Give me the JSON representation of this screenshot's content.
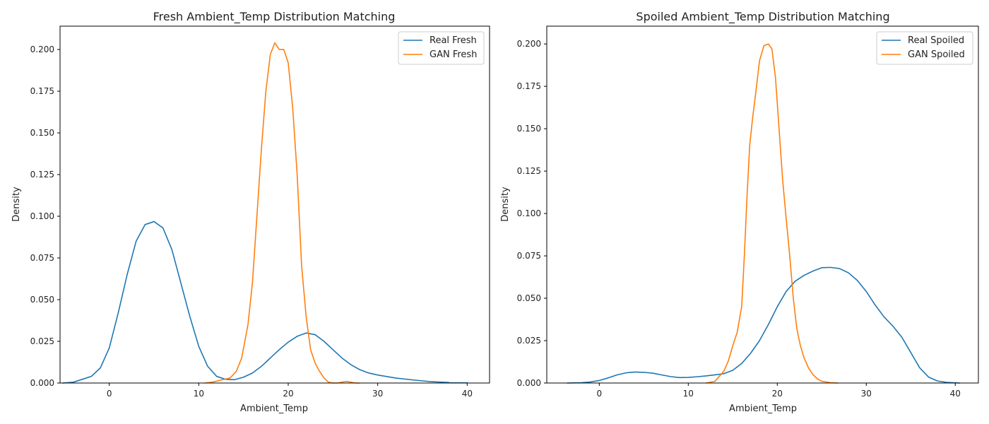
{
  "chart_data": [
    {
      "type": "line",
      "title": "Fresh Ambient_Temp Distribution Matching",
      "xlabel": "Ambient_Temp",
      "ylabel": "Density",
      "xlim": [
        -5.5,
        42.5
      ],
      "ylim": [
        0,
        0.214
      ],
      "xticks": [
        0,
        10,
        20,
        30,
        40
      ],
      "yticks": [
        0.0,
        0.025,
        0.05,
        0.075,
        0.1,
        0.125,
        0.15,
        0.175,
        0.2
      ],
      "ytick_labels": [
        "0.000",
        "0.025",
        "0.050",
        "0.075",
        "0.100",
        "0.125",
        "0.150",
        "0.175",
        "0.200"
      ],
      "grid": false,
      "legend": "top-right",
      "series": [
        {
          "name": "Real Fresh",
          "color": "#1f77b4",
          "points": [
            [
              -5.2,
              0.0
            ],
            [
              -4,
              0.0005
            ],
            [
              -2,
              0.004
            ],
            [
              -1,
              0.009
            ],
            [
              0,
              0.021
            ],
            [
              1,
              0.042
            ],
            [
              2,
              0.065
            ],
            [
              3,
              0.085
            ],
            [
              4,
              0.095
            ],
            [
              5,
              0.0968
            ],
            [
              6,
              0.093
            ],
            [
              7,
              0.08
            ],
            [
              8,
              0.06
            ],
            [
              9,
              0.04
            ],
            [
              10,
              0.022
            ],
            [
              11,
              0.01
            ],
            [
              12,
              0.004
            ],
            [
              13,
              0.0022
            ],
            [
              14,
              0.002
            ],
            [
              15,
              0.0035
            ],
            [
              16,
              0.006
            ],
            [
              17,
              0.01
            ],
            [
              18,
              0.015
            ],
            [
              19,
              0.02
            ],
            [
              20,
              0.0245
            ],
            [
              21,
              0.028
            ],
            [
              22,
              0.03
            ],
            [
              23,
              0.029
            ],
            [
              24,
              0.025
            ],
            [
              25,
              0.02
            ],
            [
              26,
              0.015
            ],
            [
              27,
              0.011
            ],
            [
              28,
              0.008
            ],
            [
              29,
              0.006
            ],
            [
              30,
              0.0048
            ],
            [
              32,
              0.003
            ],
            [
              34,
              0.0018
            ],
            [
              36,
              0.0008
            ],
            [
              38,
              0.0003
            ],
            [
              40,
              0.0001
            ]
          ]
        },
        {
          "name": "GAN Fresh",
          "color": "#ff7f0e",
          "points": [
            [
              10.7,
              0.0
            ],
            [
              11.5,
              0.0005
            ],
            [
              12.5,
              0.0018
            ],
            [
              13.5,
              0.003
            ],
            [
              14.2,
              0.007
            ],
            [
              14.8,
              0.015
            ],
            [
              15.5,
              0.035
            ],
            [
              16,
              0.06
            ],
            [
              16.5,
              0.1
            ],
            [
              17,
              0.14
            ],
            [
              17.5,
              0.175
            ],
            [
              18,
              0.197
            ],
            [
              18.5,
              0.204
            ],
            [
              19,
              0.2
            ],
            [
              19.5,
              0.2
            ],
            [
              20,
              0.192
            ],
            [
              20.5,
              0.165
            ],
            [
              21,
              0.125
            ],
            [
              21.5,
              0.07
            ],
            [
              22,
              0.04
            ],
            [
              22.5,
              0.02
            ],
            [
              23,
              0.012
            ],
            [
              23.5,
              0.007
            ],
            [
              24,
              0.003
            ],
            [
              24.5,
              0.0005
            ],
            [
              25,
              0.0
            ],
            [
              25.5,
              0.0
            ],
            [
              26.5,
              0.001
            ],
            [
              27.5,
              0.0
            ],
            [
              28,
              0.0
            ]
          ]
        }
      ]
    },
    {
      "type": "line",
      "title": "Spoiled Ambient_Temp Distribution Matching",
      "xlabel": "Ambient_Temp",
      "ylabel": "Density",
      "xlim": [
        -5.9,
        42.6
      ],
      "ylim": [
        0,
        0.2105
      ],
      "xticks": [
        0,
        10,
        20,
        30,
        40
      ],
      "yticks": [
        0.0,
        0.025,
        0.05,
        0.075,
        0.1,
        0.125,
        0.15,
        0.175,
        0.2
      ],
      "ytick_labels": [
        "0.000",
        "0.025",
        "0.050",
        "0.075",
        "0.100",
        "0.125",
        "0.150",
        "0.175",
        "0.200"
      ],
      "grid": false,
      "legend": "top-right",
      "series": [
        {
          "name": "Real Spoiled",
          "color": "#1f77b4",
          "points": [
            [
              -3.6,
              0.0
            ],
            [
              -2,
              0.0002
            ],
            [
              -1,
              0.0006
            ],
            [
              0,
              0.0015
            ],
            [
              1,
              0.003
            ],
            [
              2,
              0.0048
            ],
            [
              3,
              0.006
            ],
            [
              4,
              0.0065
            ],
            [
              5,
              0.0063
            ],
            [
              6,
              0.0058
            ],
            [
              7,
              0.0048
            ],
            [
              8,
              0.0038
            ],
            [
              9,
              0.0032
            ],
            [
              10,
              0.0033
            ],
            [
              11,
              0.0037
            ],
            [
              12,
              0.0042
            ],
            [
              13,
              0.0048
            ],
            [
              14,
              0.0055
            ],
            [
              15,
              0.0075
            ],
            [
              16,
              0.0115
            ],
            [
              17,
              0.0175
            ],
            [
              18,
              0.025
            ],
            [
              19,
              0.0345
            ],
            [
              20,
              0.045
            ],
            [
              21,
              0.054
            ],
            [
              22,
              0.06
            ],
            [
              23,
              0.0635
            ],
            [
              24,
              0.066
            ],
            [
              25,
              0.068
            ],
            [
              26,
              0.0682
            ],
            [
              27,
              0.0675
            ],
            [
              28,
              0.065
            ],
            [
              29,
              0.0605
            ],
            [
              30,
              0.054
            ],
            [
              31,
              0.046
            ],
            [
              32,
              0.039
            ],
            [
              33,
              0.0335
            ],
            [
              34,
              0.027
            ],
            [
              35,
              0.018
            ],
            [
              36,
              0.009
            ],
            [
              37,
              0.0035
            ],
            [
              38,
              0.0012
            ],
            [
              39,
              0.0004
            ],
            [
              40.5,
              0.0
            ]
          ]
        },
        {
          "name": "GAN Spoiled",
          "color": "#ff7f0e",
          "points": [
            [
              12,
              0.0
            ],
            [
              13,
              0.001
            ],
            [
              14,
              0.007
            ],
            [
              14.5,
              0.013
            ],
            [
              15,
              0.022
            ],
            [
              15.5,
              0.03
            ],
            [
              16,
              0.045
            ],
            [
              16.3,
              0.075
            ],
            [
              16.6,
              0.11
            ],
            [
              16.9,
              0.14
            ],
            [
              17.2,
              0.155
            ],
            [
              17.6,
              0.172
            ],
            [
              18,
              0.19
            ],
            [
              18.5,
              0.199
            ],
            [
              19,
              0.2
            ],
            [
              19.4,
              0.197
            ],
            [
              19.8,
              0.18
            ],
            [
              20.2,
              0.15
            ],
            [
              20.6,
              0.12
            ],
            [
              21,
              0.097
            ],
            [
              21.4,
              0.075
            ],
            [
              21.8,
              0.05
            ],
            [
              22.2,
              0.032
            ],
            [
              22.6,
              0.022
            ],
            [
              23,
              0.015
            ],
            [
              23.5,
              0.009
            ],
            [
              24,
              0.005
            ],
            [
              24.5,
              0.0025
            ],
            [
              25,
              0.001
            ],
            [
              26,
              0.0002
            ],
            [
              26.8,
              0.0
            ]
          ]
        }
      ]
    }
  ]
}
